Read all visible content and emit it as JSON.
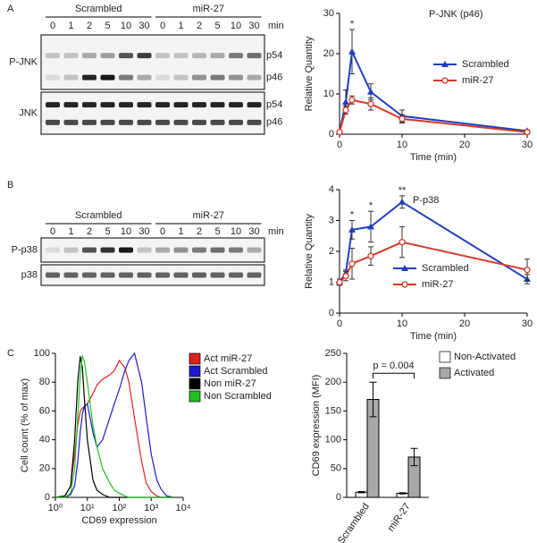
{
  "panel_labels": [
    "A",
    "B",
    "C"
  ],
  "blot_a": {
    "groups": [
      "Scrambled",
      "miR-27"
    ],
    "lanes": [
      "0",
      "1",
      "2",
      "5",
      "10",
      "30",
      "0",
      "1",
      "2",
      "5",
      "10",
      "30"
    ],
    "unit": "min",
    "rows": [
      {
        "label": "P-JNK",
        "bands": [
          "p54",
          "p46"
        ]
      },
      {
        "label": "JNK",
        "bands": [
          "p54",
          "p46"
        ]
      }
    ]
  },
  "blot_b": {
    "groups": [
      "Scrambled",
      "miR-27"
    ],
    "lanes": [
      "0",
      "1",
      "2",
      "5",
      "10",
      "30",
      "0",
      "1",
      "2",
      "5",
      "10",
      "30"
    ],
    "unit": "min",
    "rows": [
      {
        "label": "P-p38"
      },
      {
        "label": "p38"
      }
    ]
  },
  "chart_data": [
    {
      "type": "line",
      "title": "P-JNK (p46)",
      "x_label": "Time (min)",
      "y_label": "Relative Quantity",
      "x": [
        0,
        1,
        2,
        5,
        10,
        30
      ],
      "xlim": [
        0,
        30
      ],
      "xticks": [
        0,
        10,
        20,
        30
      ],
      "ylim": [
        0,
        30
      ],
      "yticks": [
        0,
        10,
        20,
        30
      ],
      "series": [
        {
          "name": "Scrambled",
          "color": "#1f3fbf",
          "marker": "triangle",
          "values": [
            0.5,
            8,
            20.5,
            10.5,
            4.5,
            0.8
          ],
          "errors": [
            0.3,
            3,
            5.5,
            2,
            1.5,
            0.3
          ]
        },
        {
          "name": "miR-27",
          "color": "#d63a2a",
          "marker": "circle",
          "values": [
            0.5,
            6,
            8.5,
            7.5,
            3.8,
            0.5
          ],
          "errors": [
            0.3,
            1,
            1,
            1.5,
            1,
            0.2
          ]
        }
      ],
      "annotations": [
        {
          "text": "*",
          "x": 2
        }
      ]
    },
    {
      "type": "line",
      "title": "P-p38",
      "x_label": "Time (min)",
      "y_label": "Relative Quantity",
      "x": [
        0,
        1,
        2,
        5,
        10,
        30
      ],
      "xlim": [
        0,
        30
      ],
      "xticks": [
        0,
        10,
        20,
        30
      ],
      "ylim": [
        0,
        4
      ],
      "yticks": [
        0,
        1,
        2,
        3,
        4
      ],
      "series": [
        {
          "name": "Scrambled",
          "color": "#1f3fbf",
          "marker": "triangle",
          "values": [
            1,
            1.3,
            2.7,
            2.8,
            3.6,
            1.1
          ],
          "errors": [
            0.1,
            0.1,
            0.3,
            0.5,
            0.2,
            0.15
          ]
        },
        {
          "name": "miR-27",
          "color": "#d63a2a",
          "marker": "circle",
          "values": [
            1,
            1.2,
            1.6,
            1.85,
            2.3,
            1.4
          ],
          "errors": [
            0.1,
            0.15,
            0.5,
            0.3,
            0.5,
            0.35
          ]
        }
      ],
      "annotations": [
        {
          "text": "*",
          "x": 2
        },
        {
          "text": "*",
          "x": 5
        },
        {
          "text": "**",
          "x": 10
        }
      ]
    },
    {
      "type": "line",
      "x_label": "CD69 expression",
      "y_label": "Cell count (% of max)",
      "xlog": true,
      "x": [
        1,
        2,
        3,
        4,
        5,
        6,
        7,
        8,
        10,
        15,
        20,
        30,
        50,
        70,
        100,
        150,
        200,
        300,
        500,
        700,
        1000,
        1500,
        2000,
        3000,
        5000
      ],
      "xlim": [
        1,
        10000
      ],
      "xticks": [
        {
          "value": 1,
          "label": "10⁰"
        },
        {
          "value": 10,
          "label": "10¹"
        },
        {
          "value": 100,
          "label": "10²"
        },
        {
          "value": 1000,
          "label": "10³"
        },
        {
          "value": 10000,
          "label": "10⁴"
        }
      ],
      "ylim": [
        0,
        100
      ],
      "yticks": [
        0,
        20,
        40,
        60,
        80,
        100
      ],
      "series": [
        {
          "name": "Act miR-27",
          "color": "#e02020",
          "values": [
            0,
            1,
            8,
            30,
            50,
            60,
            62,
            63,
            65,
            72,
            78,
            82,
            85,
            88,
            95,
            90,
            80,
            55,
            25,
            10,
            4,
            1,
            0,
            0,
            0
          ]
        },
        {
          "name": "Act Scrambled",
          "color": "#1a1ad0",
          "values": [
            0,
            0,
            2,
            8,
            25,
            45,
            58,
            63,
            65,
            45,
            35,
            40,
            55,
            65,
            75,
            88,
            95,
            100,
            80,
            55,
            30,
            12,
            6,
            1,
            0
          ]
        },
        {
          "name": "Non miR-27",
          "color": "#000000",
          "values": [
            0,
            1,
            8,
            40,
            80,
            98,
            90,
            70,
            40,
            12,
            5,
            2,
            0,
            0,
            0,
            0,
            0,
            0,
            0,
            0,
            0,
            0,
            0,
            0,
            0
          ]
        },
        {
          "name": "Non Scrambled",
          "color": "#20c020",
          "values": [
            0,
            0,
            3,
            20,
            55,
            85,
            98,
            95,
            80,
            50,
            35,
            20,
            10,
            5,
            3,
            1,
            0,
            0,
            0,
            0,
            0,
            0,
            0,
            0,
            0
          ]
        }
      ]
    },
    {
      "type": "bar",
      "y_label": "CD69 expression (MFI)",
      "categories": [
        "Scrambled",
        "miR-27"
      ],
      "ylim": [
        0,
        250
      ],
      "yticks": [
        0,
        50,
        100,
        150,
        200,
        250
      ],
      "series": [
        {
          "name": "Non-Activated",
          "color": "#ffffff",
          "values": [
            9,
            7
          ],
          "errors": [
            1,
            1
          ]
        },
        {
          "name": "Activated",
          "color": "#a8a8a8",
          "values": [
            170,
            70
          ],
          "errors": [
            30,
            15
          ]
        }
      ],
      "annotations": [
        {
          "text": "p = 0.004"
        }
      ]
    }
  ]
}
